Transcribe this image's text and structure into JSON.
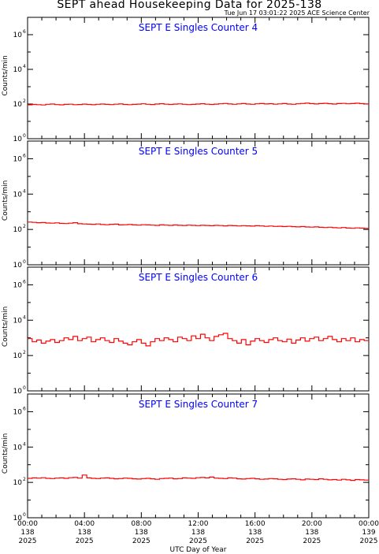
{
  "header": {
    "title": "SEPT ahead Housekeeping Data for 2025-138",
    "stamp": "Tue Jun 17 03:01:22 2025 ACE Science Center"
  },
  "colors": {
    "trace": "#ff0000",
    "panel_title": "#0000ff",
    "axes": "#000000"
  },
  "chart_data": [
    {
      "type": "line",
      "title": "SEPT E Singles Counter 4",
      "ylabel": "Counts/min",
      "yscale": "log",
      "ylim": [
        1,
        10000000
      ],
      "yticks": [
        "10^0",
        "10^2",
        "10^4",
        "10^6"
      ],
      "xlim": [
        0,
        24
      ],
      "x_unit": "hours UTC, day 138 of 2025",
      "series": [
        {
          "values": [
            90,
            95,
            92,
            88,
            97,
            100,
            93,
            90,
            96,
            98,
            92,
            94,
            99,
            95,
            91,
            97,
            100,
            96,
            93,
            98,
            101,
            95,
            92,
            96,
            99,
            103,
            97,
            94,
            100,
            104,
            98,
            95,
            99,
            102,
            97,
            93,
            96,
            100,
            104,
            98,
            95,
            99,
            103,
            108,
            101,
            97,
            102,
            106,
            100,
            97,
            103,
            107,
            101,
            104,
            98,
            102,
            106,
            100,
            97,
            103,
            108,
            112,
            105,
            101,
            107,
            110,
            104,
            100,
            106,
            109,
            103,
            107,
            111,
            105,
            102
          ]
        }
      ]
    },
    {
      "type": "line",
      "title": "SEPT E Singles Counter 5",
      "ylabel": "Counts/min",
      "yscale": "log",
      "ylim": [
        1,
        10000000
      ],
      "yticks": [
        "10^0",
        "10^2",
        "10^4",
        "10^6"
      ],
      "xlim": [
        0,
        24
      ],
      "series": [
        {
          "values": [
            260,
            250,
            240,
            245,
            230,
            225,
            235,
            220,
            215,
            225,
            240,
            210,
            205,
            200,
            195,
            205,
            190,
            185,
            195,
            200,
            180,
            185,
            190,
            180,
            175,
            185,
            180,
            175,
            170,
            180,
            175,
            170,
            178,
            172,
            168,
            175,
            170,
            165,
            172,
            168,
            163,
            170,
            166,
            160,
            168,
            162,
            158,
            165,
            160,
            155,
            162,
            158,
            150,
            156,
            148,
            152,
            146,
            150,
            144,
            140,
            146,
            138,
            135,
            140,
            132,
            128,
            134,
            126,
            122,
            128,
            120,
            116,
            122,
            118,
            115
          ]
        }
      ]
    },
    {
      "type": "line",
      "title": "SEPT E Singles Counter 6",
      "ylabel": "Counts/min",
      "yscale": "log",
      "ylim": [
        1,
        10000000
      ],
      "yticks": [
        "10^0",
        "10^2",
        "10^4",
        "10^6"
      ],
      "xlim": [
        0,
        24
      ],
      "series": [
        {
          "values": [
            900,
            600,
            750,
            500,
            650,
            800,
            550,
            700,
            1000,
            800,
            1200,
            700,
            900,
            1100,
            600,
            800,
            1000,
            700,
            550,
            900,
            650,
            500,
            400,
            600,
            800,
            500,
            350,
            600,
            900,
            700,
            1000,
            800,
            600,
            1100,
            900,
            700,
            1300,
            900,
            1600,
            1000,
            700,
            1200,
            1500,
            1800,
            900,
            700,
            500,
            800,
            400,
            650,
            900,
            700,
            550,
            800,
            1000,
            700,
            600,
            850,
            500,
            750,
            1000,
            650,
            900,
            1100,
            700,
            900,
            1200,
            800,
            600,
            900,
            700,
            1000,
            600,
            800,
            700
          ]
        }
      ]
    },
    {
      "type": "line",
      "title": "SEPT E Singles Counter 7",
      "ylabel": "Counts/min",
      "yscale": "log",
      "ylim": [
        1,
        10000000
      ],
      "yticks": [
        "10^0",
        "10^2",
        "10^4",
        "10^6"
      ],
      "xlim": [
        0,
        24
      ],
      "xlabel": "UTC Day of Year",
      "xtick_labels": [
        [
          "00:00",
          "138",
          "2025"
        ],
        [
          "04:00",
          "138",
          "2025"
        ],
        [
          "08:00",
          "138",
          "2025"
        ],
        [
          "12:00",
          "138",
          "2025"
        ],
        [
          "16:00",
          "138",
          "2025"
        ],
        [
          "20:00",
          "138",
          "2025"
        ],
        [
          "00:00",
          "139",
          "2025"
        ]
      ],
      "series": [
        {
          "values": [
            170,
            180,
            175,
            185,
            170,
            165,
            175,
            180,
            170,
            185,
            190,
            175,
            260,
            180,
            170,
            165,
            175,
            180,
            170,
            160,
            165,
            175,
            170,
            160,
            155,
            165,
            170,
            160,
            150,
            165,
            170,
            175,
            160,
            165,
            180,
            175,
            170,
            185,
            190,
            180,
            200,
            175,
            170,
            165,
            180,
            175,
            160,
            155,
            165,
            170,
            160,
            150,
            155,
            165,
            160,
            150,
            145,
            155,
            160,
            150,
            140,
            155,
            150,
            145,
            160,
            150,
            140,
            145,
            135,
            150,
            140,
            130,
            145,
            140,
            135
          ]
        }
      ]
    }
  ]
}
